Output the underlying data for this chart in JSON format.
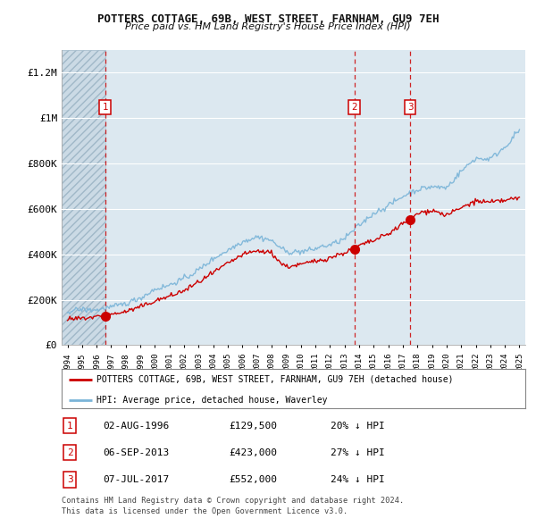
{
  "title": "POTTERS COTTAGE, 69B, WEST STREET, FARNHAM, GU9 7EH",
  "subtitle": "Price paid vs. HM Land Registry's House Price Index (HPI)",
  "legend_label_red": "POTTERS COTTAGE, 69B, WEST STREET, FARNHAM, GU9 7EH (detached house)",
  "legend_label_blue": "HPI: Average price, detached house, Waverley",
  "sales": [
    {
      "num": 1,
      "date_str": "02-AUG-1996",
      "price": 129500,
      "pct": "20%",
      "year": 1996.58
    },
    {
      "num": 2,
      "date_str": "06-SEP-2013",
      "price": 423000,
      "pct": "27%",
      "year": 2013.67
    },
    {
      "num": 3,
      "date_str": "07-JUL-2017",
      "price": 552000,
      "pct": "24%",
      "year": 2017.5
    }
  ],
  "footer1": "Contains HM Land Registry data © Crown copyright and database right 2024.",
  "footer2": "This data is licensed under the Open Government Licence v3.0.",
  "ylim": [
    0,
    1300000
  ],
  "yticks": [
    0,
    200000,
    400000,
    600000,
    800000,
    1000000,
    1200000
  ],
  "ytick_labels": [
    "£0",
    "£200K",
    "£400K",
    "£600K",
    "£800K",
    "£1M",
    "£1.2M"
  ],
  "xmin": 1993.6,
  "xmax": 2025.4,
  "red_color": "#cc0000",
  "blue_color": "#7ab4d8",
  "bg_plot": "#dce8f0",
  "bg_fig": "#ffffff",
  "grid_color": "#ffffff",
  "dashed_line_color": "#cc0000",
  "hatch_facecolor": "#c8d8e4"
}
